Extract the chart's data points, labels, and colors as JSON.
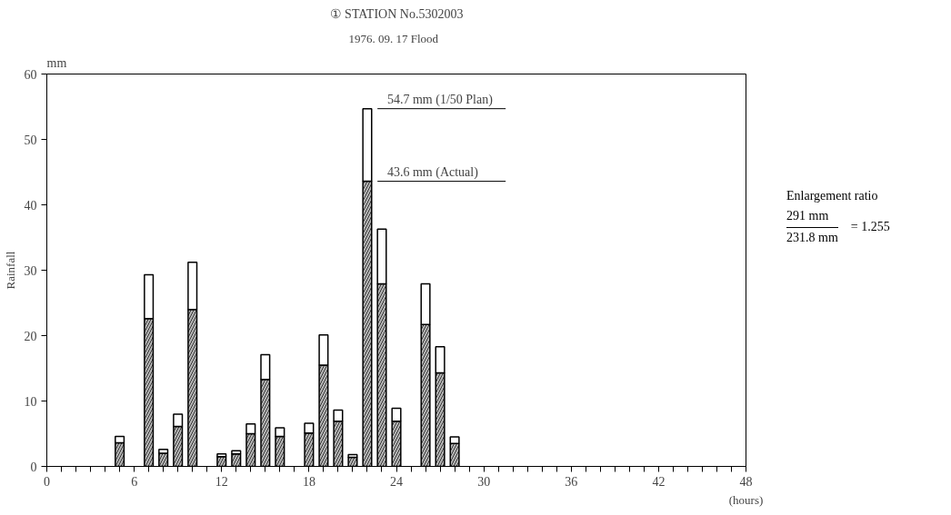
{
  "chart_data": {
    "type": "bar",
    "title": "① STATION No.5302003",
    "subtitle": "1976. 09. 17   Flood",
    "ylabel": "Rainfall",
    "xlabel": "(hours)",
    "stacked": true,
    "x": [
      5,
      7,
      8,
      9,
      10,
      12,
      13,
      14,
      15,
      16,
      18,
      19,
      20,
      21,
      22,
      23,
      24,
      26,
      27,
      28
    ],
    "series": [
      {
        "color": "#b8b8b8",
        "values": [
          3.6,
          22.6,
          2.0,
          6.1,
          24.0,
          1.5,
          1.9,
          5.0,
          13.3,
          4.6,
          5.1,
          15.5,
          6.9,
          1.4,
          43.6,
          27.9,
          6.9,
          21.7,
          14.3,
          3.5
        ]
      },
      {
        "color": "#ffffff",
        "values": [
          1.0,
          6.7,
          0.6,
          1.9,
          7.2,
          0.4,
          0.5,
          1.5,
          3.8,
          1.3,
          1.5,
          4.6,
          1.7,
          0.4,
          11.1,
          8.4,
          2.0,
          6.2,
          4.0,
          1.0
        ]
      }
    ],
    "xlim": [
      0,
      48
    ],
    "ylim": [
      0,
      60
    ],
    "xticks": [
      0,
      {
        "value": 1,
        "label": null
      },
      {
        "value": 2,
        "label": null
      },
      {
        "value": 3,
        "label": null
      },
      {
        "value": 4,
        "label": null
      },
      {
        "value": 5,
        "label": null
      },
      6,
      {
        "value": 7,
        "label": null
      },
      {
        "value": 8,
        "label": null
      },
      {
        "value": 9,
        "label": null
      },
      {
        "value": 10,
        "label": null
      },
      {
        "value": 11,
        "label": null
      },
      12,
      {
        "value": 13,
        "label": null
      },
      {
        "value": 14,
        "label": null
      },
      {
        "value": 15,
        "label": null
      },
      {
        "value": 16,
        "label": null
      },
      {
        "value": 17,
        "label": null
      },
      18,
      {
        "value": 19,
        "label": null
      },
      {
        "value": 20,
        "label": null
      },
      {
        "value": 21,
        "label": null
      },
      {
        "value": 22,
        "label": null
      },
      {
        "value": 23,
        "label": null
      },
      24,
      {
        "value": 25,
        "label": null
      },
      {
        "value": 26,
        "label": null
      },
      {
        "value": 27,
        "label": null
      },
      {
        "value": 28,
        "label": null
      },
      {
        "value": 29,
        "label": null
      },
      30,
      {
        "value": 31,
        "label": null
      },
      {
        "value": 32,
        "label": null
      },
      {
        "value": 33,
        "label": null
      },
      {
        "value": 34,
        "label": null
      },
      {
        "value": 35,
        "label": null
      },
      36,
      {
        "value": 37,
        "label": null
      },
      {
        "value": 38,
        "label": null
      },
      {
        "value": 39,
        "label": null
      },
      {
        "value": 40,
        "label": null
      },
      {
        "value": 41,
        "label": null
      },
      42,
      {
        "value": 43,
        "label": null
      },
      {
        "value": 44,
        "label": null
      },
      {
        "value": 45,
        "label": null
      },
      {
        "value": 46,
        "label": null
      },
      {
        "value": 47,
        "label": null
      },
      48
    ],
    "yticks": [
      0,
      10,
      20,
      30,
      40,
      50,
      60
    ],
    "grid": false,
    "annotations": [
      {
        "text": "54.7 mm (1/50 Plan)",
        "x": 22,
        "y": 54.7
      },
      {
        "text": "43.6 mm (Actual)",
        "x": 22,
        "y": 43.6
      },
      "mm",
      "Enlargement ratio",
      "291 mm",
      "231.8 mm",
      "= 1.255"
    ]
  }
}
